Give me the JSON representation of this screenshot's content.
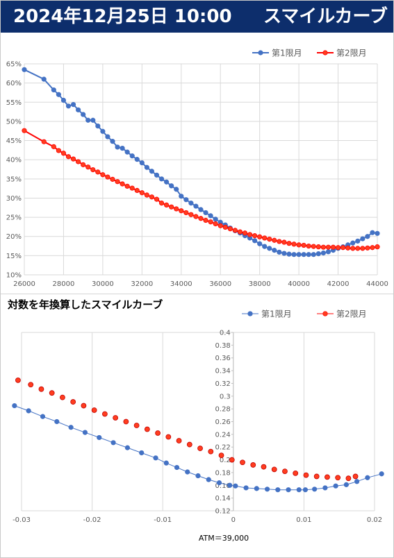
{
  "header": {
    "datetime": "2024年12月25日 10:00",
    "title": "スマイルカーブ"
  },
  "colors": {
    "series1": "#4472c4",
    "series2": "#ff0000",
    "series2_fill": "#ff3d1f",
    "grid": "#d9d9d9",
    "header_bg": "#0d2e6c"
  },
  "chart_data": [
    {
      "type": "line",
      "title": "",
      "xlabel": "",
      "ylabel": "",
      "xlim": [
        26000,
        44000
      ],
      "ylim": [
        10,
        65
      ],
      "x_ticks": [
        26000,
        28000,
        30000,
        32000,
        34000,
        36000,
        38000,
        40000,
        42000,
        44000
      ],
      "y_ticks": [
        10,
        15,
        20,
        25,
        30,
        35,
        40,
        45,
        50,
        55,
        60,
        65
      ],
      "y_tick_labels": [
        "10%",
        "15%",
        "20%",
        "25%",
        "30%",
        "35%",
        "40%",
        "45%",
        "50%",
        "55%",
        "60%",
        "65%"
      ],
      "grid": true,
      "legend": "top-right",
      "series": [
        {
          "name": "第1限月",
          "x": [
            26000,
            27000,
            27500,
            27750,
            28000,
            28250,
            28500,
            28750,
            29000,
            29250,
            29500,
            29750,
            30000,
            30250,
            30500,
            30750,
            31000,
            31250,
            31500,
            31750,
            32000,
            32250,
            32500,
            32750,
            33000,
            33250,
            33500,
            33750,
            34000,
            34250,
            34500,
            34750,
            35000,
            35250,
            35500,
            35750,
            36000,
            36250,
            36500,
            36750,
            37000,
            37250,
            37500,
            37750,
            38000,
            38250,
            38500,
            38750,
            39000,
            39250,
            39500,
            39750,
            40000,
            40250,
            40500,
            40750,
            41000,
            41250,
            41500,
            41750,
            42000,
            42250,
            42500,
            42750,
            43000,
            43250,
            43500,
            43750,
            44000
          ],
          "y": [
            63.5,
            61.0,
            58.2,
            57.0,
            55.5,
            54.0,
            54.4,
            53.0,
            51.8,
            50.3,
            50.3,
            48.8,
            47.4,
            46.0,
            44.8,
            43.3,
            43.0,
            42.0,
            41.0,
            40.1,
            39.2,
            38.0,
            37.0,
            36.0,
            35.0,
            34.2,
            33.2,
            32.3,
            30.5,
            29.6,
            28.7,
            27.9,
            27.0,
            26.2,
            25.4,
            24.5,
            23.7,
            23.0,
            22.2,
            21.5,
            20.9,
            20.2,
            19.6,
            18.9,
            18.1,
            17.4,
            16.9,
            16.4,
            15.9,
            15.6,
            15.4,
            15.3,
            15.3,
            15.3,
            15.3,
            15.3,
            15.5,
            15.7,
            16.0,
            16.4,
            16.9,
            17.3,
            17.8,
            18.3,
            18.8,
            19.4,
            20.0,
            21.0,
            20.8
          ]
        },
        {
          "name": "第2限月",
          "x": [
            26000,
            27000,
            27500,
            27750,
            28000,
            28250,
            28500,
            28750,
            29000,
            29250,
            29500,
            29750,
            30000,
            30250,
            30500,
            30750,
            31000,
            31250,
            31500,
            31750,
            32000,
            32250,
            32500,
            32750,
            33000,
            33250,
            33500,
            33750,
            34000,
            34250,
            34500,
            34750,
            35000,
            35250,
            35500,
            35750,
            36000,
            36250,
            36500,
            36750,
            37000,
            37250,
            37500,
            37750,
            38000,
            38250,
            38500,
            38750,
            39000,
            39250,
            39500,
            39750,
            40000,
            40250,
            40500,
            40750,
            41000,
            41250,
            41500,
            41750,
            42000,
            42250,
            42500,
            42750,
            43000,
            43250,
            43500,
            43750,
            44000
          ],
          "y": [
            47.6,
            44.7,
            43.4,
            42.4,
            41.7,
            40.8,
            40.2,
            39.5,
            38.7,
            38.1,
            37.4,
            36.8,
            36.1,
            35.5,
            34.9,
            34.3,
            33.7,
            33.1,
            32.6,
            32.0,
            31.4,
            30.8,
            30.3,
            29.7,
            28.7,
            28.2,
            27.7,
            27.2,
            26.7,
            26.2,
            25.7,
            25.2,
            24.7,
            24.2,
            23.8,
            23.3,
            22.8,
            22.4,
            22.0,
            21.6,
            21.2,
            20.9,
            20.5,
            20.2,
            19.9,
            19.6,
            19.3,
            19.0,
            18.7,
            18.5,
            18.2,
            18.0,
            17.8,
            17.7,
            17.5,
            17.4,
            17.3,
            17.2,
            17.2,
            17.2,
            17.1,
            17.1,
            17.0,
            16.9,
            16.9,
            16.9,
            17.0,
            17.1,
            17.3
          ]
        }
      ]
    },
    {
      "type": "scatter",
      "title": "対数を年換算したスマイルカーブ",
      "xlabel": "",
      "ylabel": "",
      "xlim": [
        -0.03,
        0.02
      ],
      "ylim": [
        0.12,
        0.4
      ],
      "x_ticks": [
        -0.03,
        -0.02,
        -0.01,
        0,
        0.01,
        0.02
      ],
      "x_tick_labels": [
        "-0.03",
        "-0.02",
        "-0.01",
        "0",
        "0.01",
        "0.02"
      ],
      "y_ticks": [
        0.12,
        0.14,
        0.16,
        0.18,
        0.2,
        0.22,
        0.24,
        0.26,
        0.28,
        0.3,
        0.32,
        0.34,
        0.36,
        0.38,
        0.4
      ],
      "y_tick_labels": [
        "0.12",
        "0.14",
        "0.16",
        "0.18",
        "0.2",
        "0.22",
        "0.24",
        "0.26",
        "0.28",
        "0.3",
        "0.32",
        "0.34",
        "0.36",
        "0.38",
        "0.4"
      ],
      "grid": true,
      "legend": "top-right",
      "annotation": "ATM＝39,000",
      "series": [
        {
          "name": "第1限月",
          "x": [
            -0.031,
            -0.029,
            -0.027,
            -0.025,
            -0.023,
            -0.021,
            -0.019,
            -0.017,
            -0.015,
            -0.013,
            -0.011,
            -0.0095,
            -0.008,
            -0.0065,
            -0.005,
            -0.0035,
            -0.002,
            -0.0005,
            0.0003,
            0.0018,
            0.0033,
            0.0048,
            0.0063,
            0.0078,
            0.0093,
            0.0102,
            0.0115,
            0.013,
            0.0145,
            0.016,
            0.0175,
            0.019,
            0.021
          ],
          "y": [
            0.285,
            0.277,
            0.268,
            0.26,
            0.251,
            0.243,
            0.235,
            0.227,
            0.219,
            0.211,
            0.203,
            0.195,
            0.188,
            0.181,
            0.175,
            0.169,
            0.164,
            0.16,
            0.159,
            0.156,
            0.155,
            0.154,
            0.153,
            0.153,
            0.153,
            0.153,
            0.154,
            0.156,
            0.159,
            0.161,
            0.166,
            0.172,
            0.178
          ]
        },
        {
          "name": "第2限月",
          "x": [
            -0.0305,
            -0.0287,
            -0.0272,
            -0.0257,
            -0.0242,
            -0.0227,
            -0.0212,
            -0.0197,
            -0.0182,
            -0.0167,
            -0.0152,
            -0.0137,
            -0.0122,
            -0.0107,
            -0.0092,
            -0.0077,
            -0.0062,
            -0.0047,
            -0.0032,
            -0.0017,
            -0.0002,
            0.0013,
            0.0028,
            0.0043,
            0.0058,
            0.0073,
            0.0088,
            0.0103,
            0.0118,
            0.0133,
            0.0148,
            0.0163,
            0.0173
          ],
          "y": [
            0.325,
            0.318,
            0.311,
            0.305,
            0.298,
            0.291,
            0.285,
            0.278,
            0.272,
            0.266,
            0.26,
            0.254,
            0.248,
            0.242,
            0.236,
            0.23,
            0.224,
            0.218,
            0.213,
            0.207,
            0.2,
            0.196,
            0.192,
            0.189,
            0.185,
            0.182,
            0.179,
            0.176,
            0.174,
            0.173,
            0.172,
            0.171,
            0.174
          ]
        }
      ]
    }
  ]
}
